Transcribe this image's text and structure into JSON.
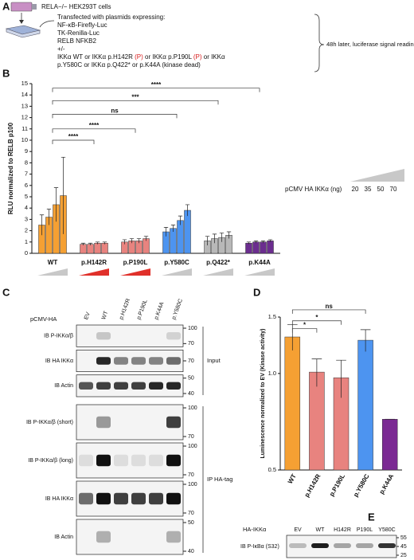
{
  "panel_a": {
    "label": "A",
    "cells": "RELA−/− HEK293T cells",
    "lines": [
      [
        {
          "text": "Transfected with plasmids expressing:"
        }
      ],
      [
        {
          "text": "NF-κB-Firefly-Luc"
        }
      ],
      [
        {
          "text": "TK-Renilla-Luc"
        }
      ],
      [
        {
          "text": "RELB NFKB2"
        }
      ],
      [
        {
          "text": "+/-"
        }
      ],
      [
        {
          "text": "IKKα WT or IKKα p.H142R "
        },
        {
          "text": "(P)",
          "color": "#d81e1e"
        },
        {
          "text": " or IKKα p.P190L "
        },
        {
          "text": "(P)",
          "color": "#d81e1e"
        },
        {
          "text": " or IKKα"
        }
      ],
      [
        {
          "text": "p.Y580C or IKKα p.Q422* or p.K44A (kinase dead)"
        }
      ]
    ],
    "readout": "48h later, luciferase signal reading"
  },
  "chart_data": [
    {
      "type": "bar",
      "label": "B",
      "ylabel": "RLU normalized to RELB p100",
      "categories": [
        "WT",
        "p.H142R",
        "p.P190L",
        "p.Y580C",
        "p.Q422*",
        "p.K44A"
      ],
      "colors": [
        "#f5a033",
        "#e8837f",
        "#e8837f",
        "#4d94f0",
        "#b8b8b8",
        "#6b2d8f"
      ],
      "wedge_colors": [
        "#c8c8c8",
        "#e0302a",
        "#e0302a",
        "#c8c8c8",
        "#c8c8c8",
        "#c8c8c8"
      ],
      "legend_title": "pCMV HA IKKα (ng)",
      "series": [
        {
          "name": "20",
          "values": [
            2.5,
            0.8,
            1.0,
            1.9,
            1.1,
            0.9
          ],
          "errors": [
            0.9,
            0.1,
            0.2,
            0.4,
            0.4,
            0.1
          ]
        },
        {
          "name": "35",
          "values": [
            3.2,
            0.8,
            1.1,
            2.2,
            1.3,
            1.0
          ],
          "errors": [
            0.7,
            0.1,
            0.2,
            0.3,
            0.4,
            0.1
          ]
        },
        {
          "name": "50",
          "values": [
            4.3,
            0.9,
            1.1,
            2.9,
            1.4,
            1.0
          ],
          "errors": [
            1.5,
            0.1,
            0.2,
            0.4,
            0.4,
            0.1
          ]
        },
        {
          "name": "70",
          "values": [
            5.1,
            0.9,
            1.3,
            3.8,
            1.6,
            1.1
          ],
          "errors": [
            3.4,
            0.1,
            0.2,
            0.5,
            0.3,
            0.1
          ]
        }
      ],
      "ylim": [
        0,
        15
      ],
      "yticks": [
        0,
        1,
        2,
        3,
        4,
        5,
        6,
        7,
        8,
        9,
        10,
        11,
        12,
        13,
        14,
        15
      ],
      "annotations": [
        {
          "text": "****",
          "from": 0,
          "to": 1,
          "y": 10
        },
        {
          "text": "****",
          "from": 0,
          "to": 2,
          "y": 11
        },
        {
          "text": "ns",
          "from": 0,
          "to": 3,
          "y": 12.3
        },
        {
          "text": "***",
          "from": 0,
          "to": 4,
          "y": 13.5
        },
        {
          "text": "****",
          "from": 0,
          "to": 5,
          "y": 14.6
        }
      ]
    },
    {
      "type": "bar",
      "label": "D",
      "ylabel": "Luminescence normalized to EV (Kinase activity)",
      "log": true,
      "categories": [
        "WT",
        "p.H142R",
        "p.P190L",
        "p.Y580C",
        "p.K44A"
      ],
      "colors": [
        "#f5a033",
        "#e8837f",
        "#e8837f",
        "#4d94f0",
        "#7b2a93"
      ],
      "values": [
        1.3,
        1.01,
        0.97,
        1.27,
        0.72
      ],
      "errors": [
        0.12,
        0.1,
        0.13,
        0.1,
        0
      ],
      "ylim": [
        0.5,
        1.5
      ],
      "yticks": [
        {
          "value": 0.5,
          "label": "0.5"
        },
        {
          "value": 1,
          "label": "1.0"
        },
        {
          "value": 1.5,
          "label": "1.5"
        }
      ],
      "annotations": [
        {
          "text": "*",
          "from": 0,
          "to": 1,
          "y": 1.38
        },
        {
          "text": "*",
          "from": 0,
          "to": 2,
          "y": 1.46
        },
        {
          "text": "ns",
          "from": 0,
          "to": 3,
          "y": 1.58
        }
      ]
    }
  ],
  "blot_c": {
    "label": "C",
    "construct": "pCMV-HA",
    "lanes": [
      "EV",
      "WT",
      "p.H142R",
      "p.P190L",
      "p.K44A",
      "p.Y580C"
    ],
    "blocks": [
      {
        "title": "Input",
        "rows": [
          {
            "label": "IB P-IKKα/β",
            "markers": [
              100,
              70
            ]
          },
          {
            "label": "IB HA IKKα",
            "markers": [
              70
            ]
          },
          {
            "label": "IB Actin",
            "markers": [
              50,
              40
            ]
          }
        ]
      },
      {
        "title": "IP HA-tag",
        "rows": [
          {
            "label": "IB P-IKKα/β (short)",
            "markers": [
              100,
              70
            ]
          },
          {
            "label": "IB P-IKKα/β (long)",
            "markers": [
              100,
              70
            ]
          },
          {
            "label": "IB HA IKKα",
            "markers": [
              100,
              70
            ]
          },
          {
            "label": "IB Actin",
            "markers": [
              50,
              40
            ]
          }
        ]
      }
    ]
  },
  "blot_e": {
    "label": "E",
    "construct": "HA-IKKα",
    "lanes": [
      "EV",
      "WT",
      "H142R",
      "P190L",
      "Y580C"
    ],
    "row": "IB P-IκBα (S32)",
    "markers": [
      55,
      45,
      25
    ]
  }
}
